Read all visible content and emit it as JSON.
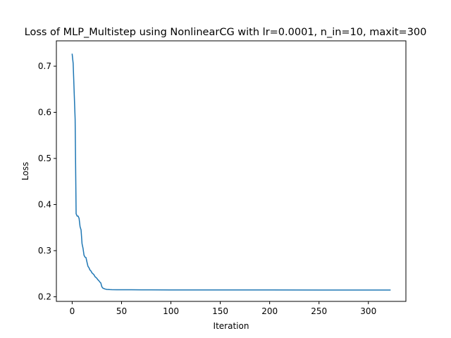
{
  "chart_data": {
    "type": "line",
    "title": "Loss of MLP_Multistep using NonlinearCG with lr=0.0001, n_in=10, maxit=300",
    "xlabel": "Iteration",
    "ylabel": "Loss",
    "xlim": [
      -16,
      338
    ],
    "ylim": [
      0.19,
      0.755
    ],
    "xticks": [
      0,
      50,
      100,
      150,
      200,
      250,
      300
    ],
    "yticks": [
      0.2,
      0.3,
      0.4,
      0.5,
      0.6,
      0.7
    ],
    "grid": false,
    "legend": "none",
    "line_color": "#1f77b4",
    "series": [
      {
        "x": [
          0,
          1,
          2,
          3,
          4,
          5,
          6,
          7,
          8,
          9,
          10,
          11,
          12,
          13,
          14,
          15,
          16,
          17,
          18,
          19,
          20,
          21,
          22,
          23,
          24,
          25,
          26,
          27,
          28,
          29,
          30,
          31,
          32,
          33,
          35,
          38,
          40,
          45,
          50,
          60,
          70,
          80,
          100,
          120,
          150,
          180,
          200,
          250,
          300,
          322
        ],
        "y": [
          0.726,
          0.706,
          0.645,
          0.585,
          0.38,
          0.375,
          0.375,
          0.37,
          0.352,
          0.345,
          0.315,
          0.305,
          0.29,
          0.286,
          0.285,
          0.275,
          0.266,
          0.263,
          0.258,
          0.256,
          0.252,
          0.25,
          0.248,
          0.244,
          0.242,
          0.24,
          0.237,
          0.235,
          0.232,
          0.23,
          0.222,
          0.219,
          0.218,
          0.217,
          0.216,
          0.2155,
          0.2153,
          0.2152,
          0.2152,
          0.2151,
          0.215,
          0.215,
          0.2149,
          0.2149,
          0.2148,
          0.2148,
          0.2148,
          0.2147,
          0.2147,
          0.2147
        ]
      }
    ]
  }
}
